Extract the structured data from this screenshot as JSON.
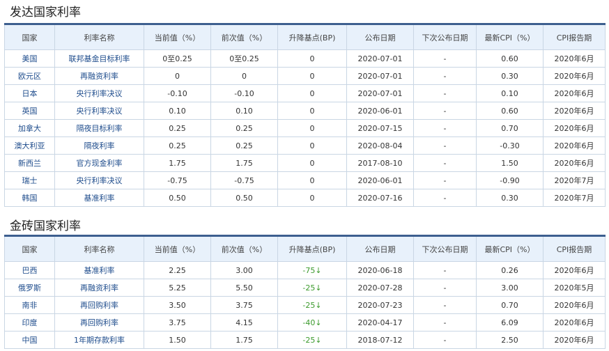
{
  "headers": [
    "国家",
    "利率名称",
    "当前值（%）",
    "前次值（%）",
    "升降基点(BP)",
    "公布日期",
    "下次公布日期",
    "最新CPI（%）",
    "CPI报告期"
  ],
  "developed": {
    "title": "发达国家利率",
    "rows": [
      [
        "美国",
        "联邦基金目标利率",
        "0至0.25",
        "0至0.25",
        "0",
        "2020-07-01",
        "-",
        "0.60",
        "2020年6月"
      ],
      [
        "欧元区",
        "再融资利率",
        "0",
        "0",
        "0",
        "2020-07-01",
        "-",
        "0.30",
        "2020年6月"
      ],
      [
        "日本",
        "央行利率决议",
        "-0.10",
        "-0.10",
        "0",
        "2020-07-01",
        "-",
        "0.10",
        "2020年6月"
      ],
      [
        "英国",
        "央行利率决议",
        "0.10",
        "0.10",
        "0",
        "2020-06-01",
        "-",
        "0.60",
        "2020年6月"
      ],
      [
        "加拿大",
        "隔夜目标利率",
        "0.25",
        "0.25",
        "0",
        "2020-07-15",
        "-",
        "0.70",
        "2020年6月"
      ],
      [
        "澳大利亚",
        "隔夜利率",
        "0.25",
        "0.25",
        "0",
        "2020-08-04",
        "-",
        "-0.30",
        "2020年6月"
      ],
      [
        "新西兰",
        "官方现金利率",
        "1.75",
        "1.75",
        "0",
        "2017-08-10",
        "-",
        "1.50",
        "2020年6月"
      ],
      [
        "瑞士",
        "央行利率决议",
        "-0.75",
        "-0.75",
        "0",
        "2020-06-01",
        "-",
        "-0.90",
        "2020年7月"
      ],
      [
        "韩国",
        "基准利率",
        "0.50",
        "0.50",
        "0",
        "2020-07-16",
        "-",
        "0.30",
        "2020年7月"
      ]
    ]
  },
  "brics": {
    "title": "金砖国家利率",
    "rows": [
      [
        "巴西",
        "基准利率",
        "2.25",
        "3.00",
        "-75↓",
        "2020-06-18",
        "-",
        "0.26",
        "2020年6月"
      ],
      [
        "俄罗斯",
        "再融资利率",
        "5.25",
        "5.50",
        "-25↓",
        "2020-07-28",
        "-",
        "3.00",
        "2020年5月"
      ],
      [
        "南非",
        "再回购利率",
        "3.50",
        "3.75",
        "-25↓",
        "2020-07-23",
        "-",
        "0.70",
        "2020年6月"
      ],
      [
        "印度",
        "再回购利率",
        "3.75",
        "4.15",
        "-40↓",
        "2020-04-17",
        "-",
        "6.09",
        "2020年6月"
      ],
      [
        "中国",
        "1年期存款利率",
        "1.50",
        "1.75",
        "-25↓",
        "2018-07-12",
        "-",
        "2.50",
        "2020年6月"
      ]
    ]
  },
  "colors": {
    "link": "#1e4c8c",
    "down": "#3b9a2c",
    "header_bg": "#e8f1fb",
    "header_border": "#3d5f8f"
  }
}
